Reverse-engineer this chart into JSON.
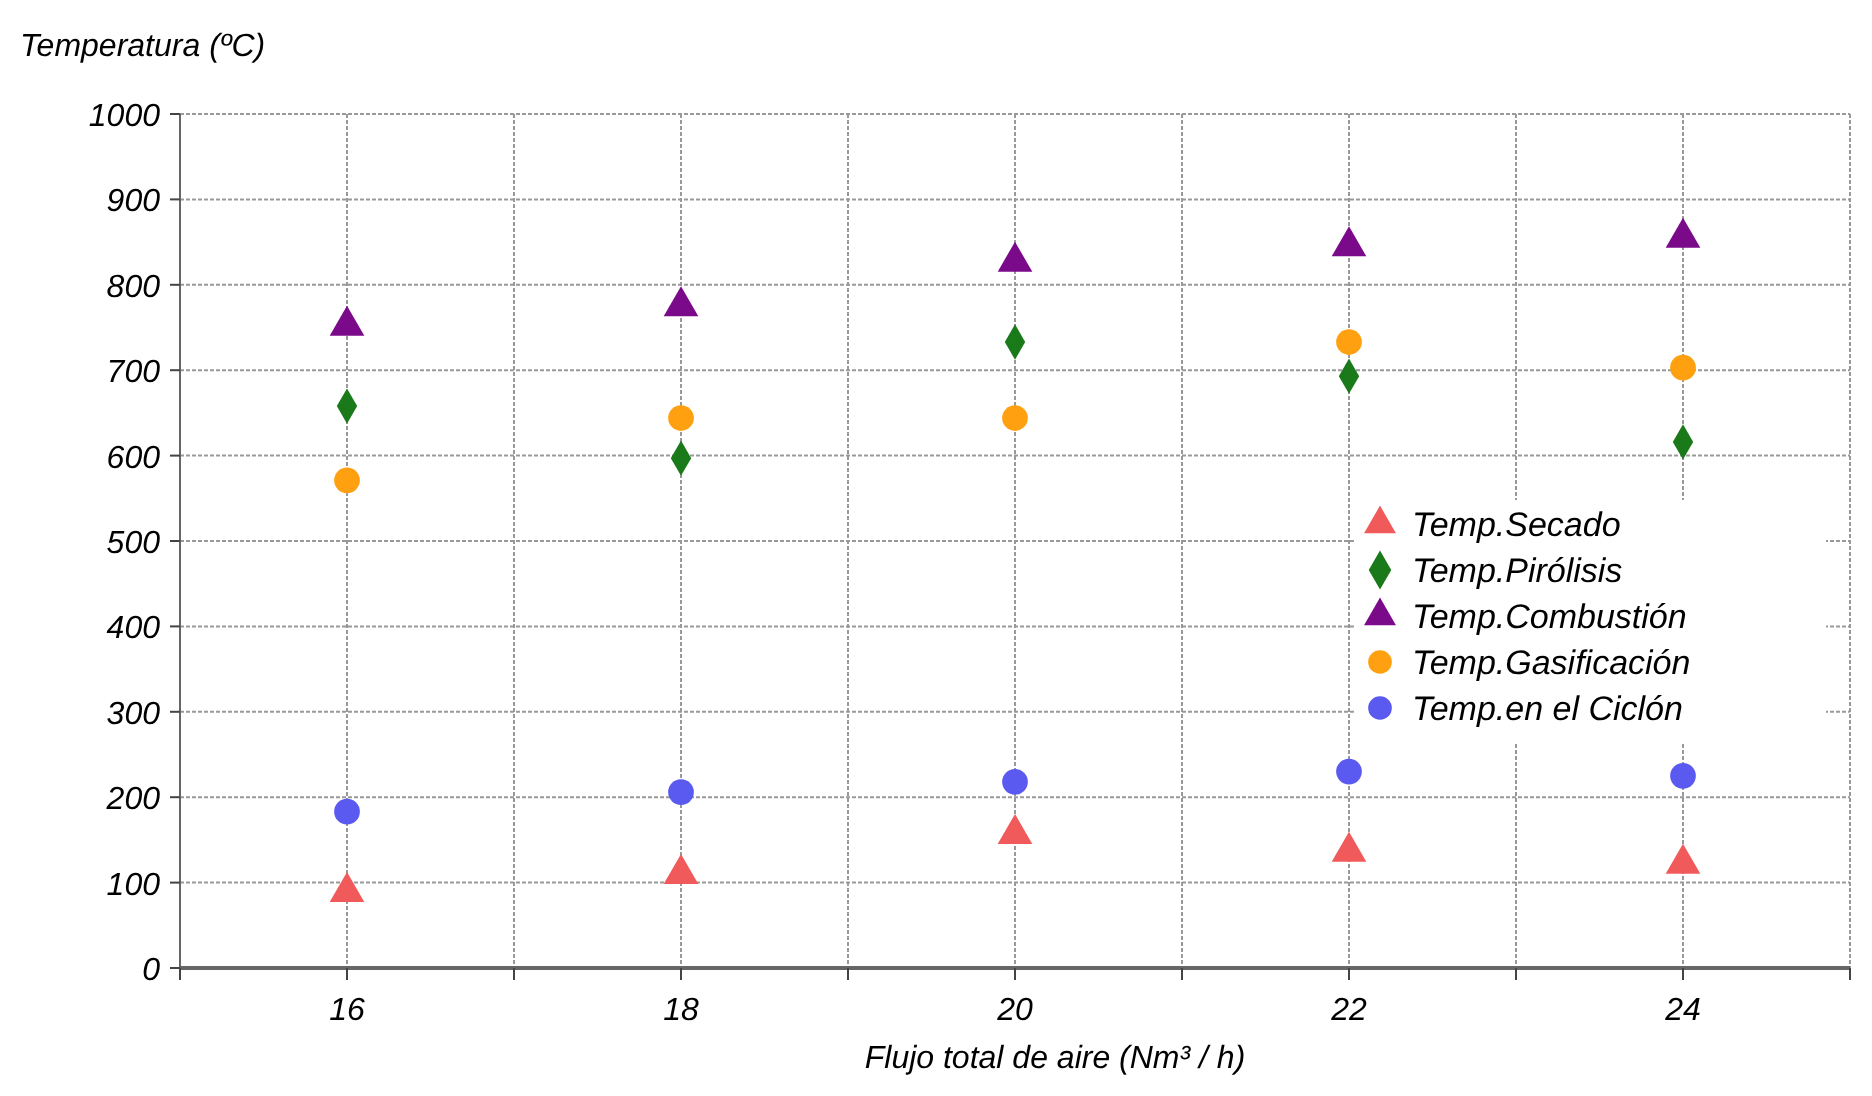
{
  "chart_data": {
    "type": "scatter",
    "ylabel": "Temperatura (ºC)",
    "xlabel": "Flujo total de aire (Nm³ / h)",
    "x": [
      16,
      18,
      20,
      22,
      24
    ],
    "xlim": [
      15,
      25
    ],
    "xticks": [
      {
        "value": 15,
        "label": null
      },
      16,
      {
        "value": 17,
        "label": null
      },
      18,
      {
        "value": 19,
        "label": null
      },
      20,
      {
        "value": 21,
        "label": null
      },
      22,
      {
        "value": 23,
        "label": null
      },
      24,
      {
        "value": 25,
        "label": null
      }
    ],
    "ylim": [
      0,
      1000
    ],
    "yticks": [
      0,
      100,
      200,
      300,
      400,
      500,
      600,
      700,
      800,
      900,
      1000
    ],
    "grid": true,
    "legend": "right",
    "series": [
      {
        "name": "Temp.Secado",
        "color": "#f05a5a",
        "marker": "triangle",
        "values": [
          89,
          110,
          157,
          136,
          122
        ]
      },
      {
        "name": "Temp.Pirólisis",
        "color": "#1a7a1a",
        "marker": "diamond",
        "values": [
          658,
          597,
          733,
          693,
          616
        ]
      },
      {
        "name": "Temp.Combustión",
        "color": "#7a0a8a",
        "marker": "triangle",
        "values": [
          752,
          775,
          827,
          845,
          855
        ]
      },
      {
        "name": "Temp.Gasificación",
        "color": "#ffa010",
        "marker": "circle",
        "values": [
          571,
          644,
          644,
          733,
          703
        ]
      },
      {
        "name": "Temp.en el Ciclón",
        "color": "#5a5af0",
        "marker": "circle",
        "values": [
          183,
          206,
          218,
          230,
          225
        ]
      }
    ]
  }
}
